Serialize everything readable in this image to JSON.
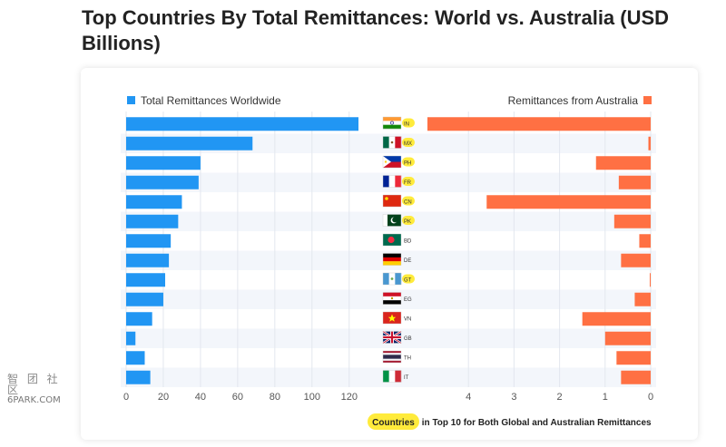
{
  "page": {
    "title": "Top Countries By Total Remittances: World vs. Australia (USD Billions)",
    "footer_highlight": "Countries",
    "footer_rest": " in Top 10 for Both Global and Australian Remittances",
    "watermark_glyphs": "智 团 社 区",
    "watermark_text": "6PARK.COM"
  },
  "colors": {
    "world": "#2196f3",
    "australia": "#ff7043",
    "highlight": "#ffeb3b",
    "row_band": "#f3f6fb"
  },
  "chart_data": {
    "type": "bar",
    "layout": "butterfly",
    "categories": [
      "IN",
      "MX",
      "PH",
      "FR",
      "CN",
      "PK",
      "BD",
      "DE",
      "GT",
      "EG",
      "VN",
      "GB",
      "TH",
      "IT"
    ],
    "highlighted": [
      "IN",
      "MX",
      "PH",
      "FR",
      "CN",
      "PK",
      "GT"
    ],
    "flags": {
      "IN": "india-flag",
      "MX": "mexico-flag",
      "PH": "philippines-flag",
      "FR": "france-flag",
      "CN": "china-flag",
      "PK": "pakistan-flag",
      "BD": "bangladesh-flag",
      "DE": "germany-flag",
      "GT": "guatemala-flag",
      "EG": "egypt-flag",
      "VN": "vietnam-flag",
      "GB": "uk-flag",
      "TH": "thailand-flag",
      "IT": "italy-flag"
    },
    "series": [
      {
        "name": "Total Remittances Worldwide",
        "values": [
          125,
          68,
          40,
          39,
          30,
          28,
          24,
          23,
          21,
          20,
          14,
          5,
          10,
          13
        ]
      },
      {
        "name": "Remittances from Australia",
        "values": [
          4.9,
          0.05,
          1.2,
          0.7,
          3.6,
          0.8,
          0.25,
          0.65,
          0.02,
          0.35,
          1.5,
          1.0,
          0.75,
          0.65
        ]
      }
    ],
    "left_axis": {
      "ticks": [
        0,
        20,
        40,
        60,
        80,
        100,
        120
      ],
      "xlim": [
        0,
        125
      ]
    },
    "right_axis": {
      "ticks": [
        4,
        3,
        2,
        1,
        0
      ],
      "xlim": [
        0,
        4.9
      ]
    },
    "grid": true
  }
}
